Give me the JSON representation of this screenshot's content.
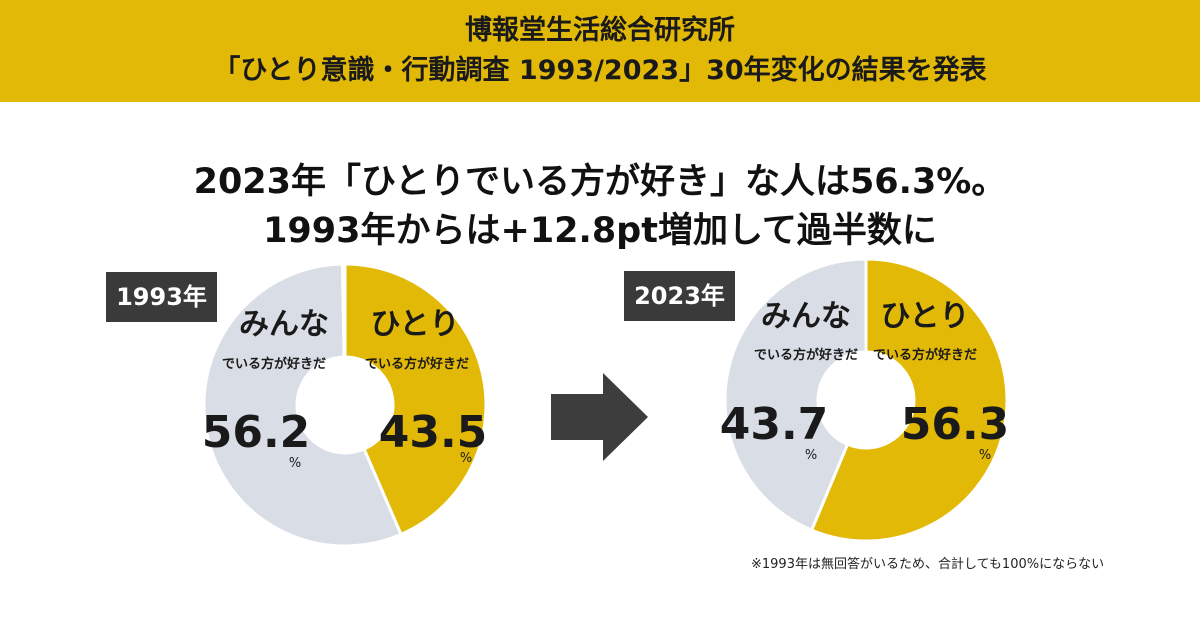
{
  "banner": {
    "line1": "博報堂生活総合研究所",
    "line2": "「ひとり意識・行動調査 1993/2023」30年変化の結果を発表"
  },
  "headline": {
    "line1": "2023年「ひとりでいる方が好き」な人は56.3%。",
    "line2": "1993年からは+12.8pt増加して過半数に"
  },
  "colors": {
    "hitori": "#e2b906",
    "minna": "#d8dde6",
    "banner": "#e2b906",
    "tag": "#3a3a3a"
  },
  "chart_data": [
    {
      "type": "pie",
      "year_label": "1993年",
      "slices": [
        {
          "key": "hitori",
          "title": "ひとり",
          "subtitle": "でいる方が好きだ",
          "value": 43.5,
          "value_text": "43.5",
          "unit": "%"
        },
        {
          "key": "minna",
          "title": "みんな",
          "subtitle": "でいる方が好きだ",
          "value": 56.2,
          "value_text": "56.2",
          "unit": "%"
        }
      ]
    },
    {
      "type": "pie",
      "year_label": "2023年",
      "slices": [
        {
          "key": "hitori",
          "title": "ひとり",
          "subtitle": "でいる方が好きだ",
          "value": 56.3,
          "value_text": "56.3",
          "unit": "%"
        },
        {
          "key": "minna",
          "title": "みんな",
          "subtitle": "でいる方が好きだ",
          "value": 43.7,
          "value_text": "43.7",
          "unit": "%"
        }
      ]
    }
  ],
  "arrow_icon": "right-arrow-icon",
  "footnote": "※1993年は無回答がいるため、合計しても100%にならない"
}
